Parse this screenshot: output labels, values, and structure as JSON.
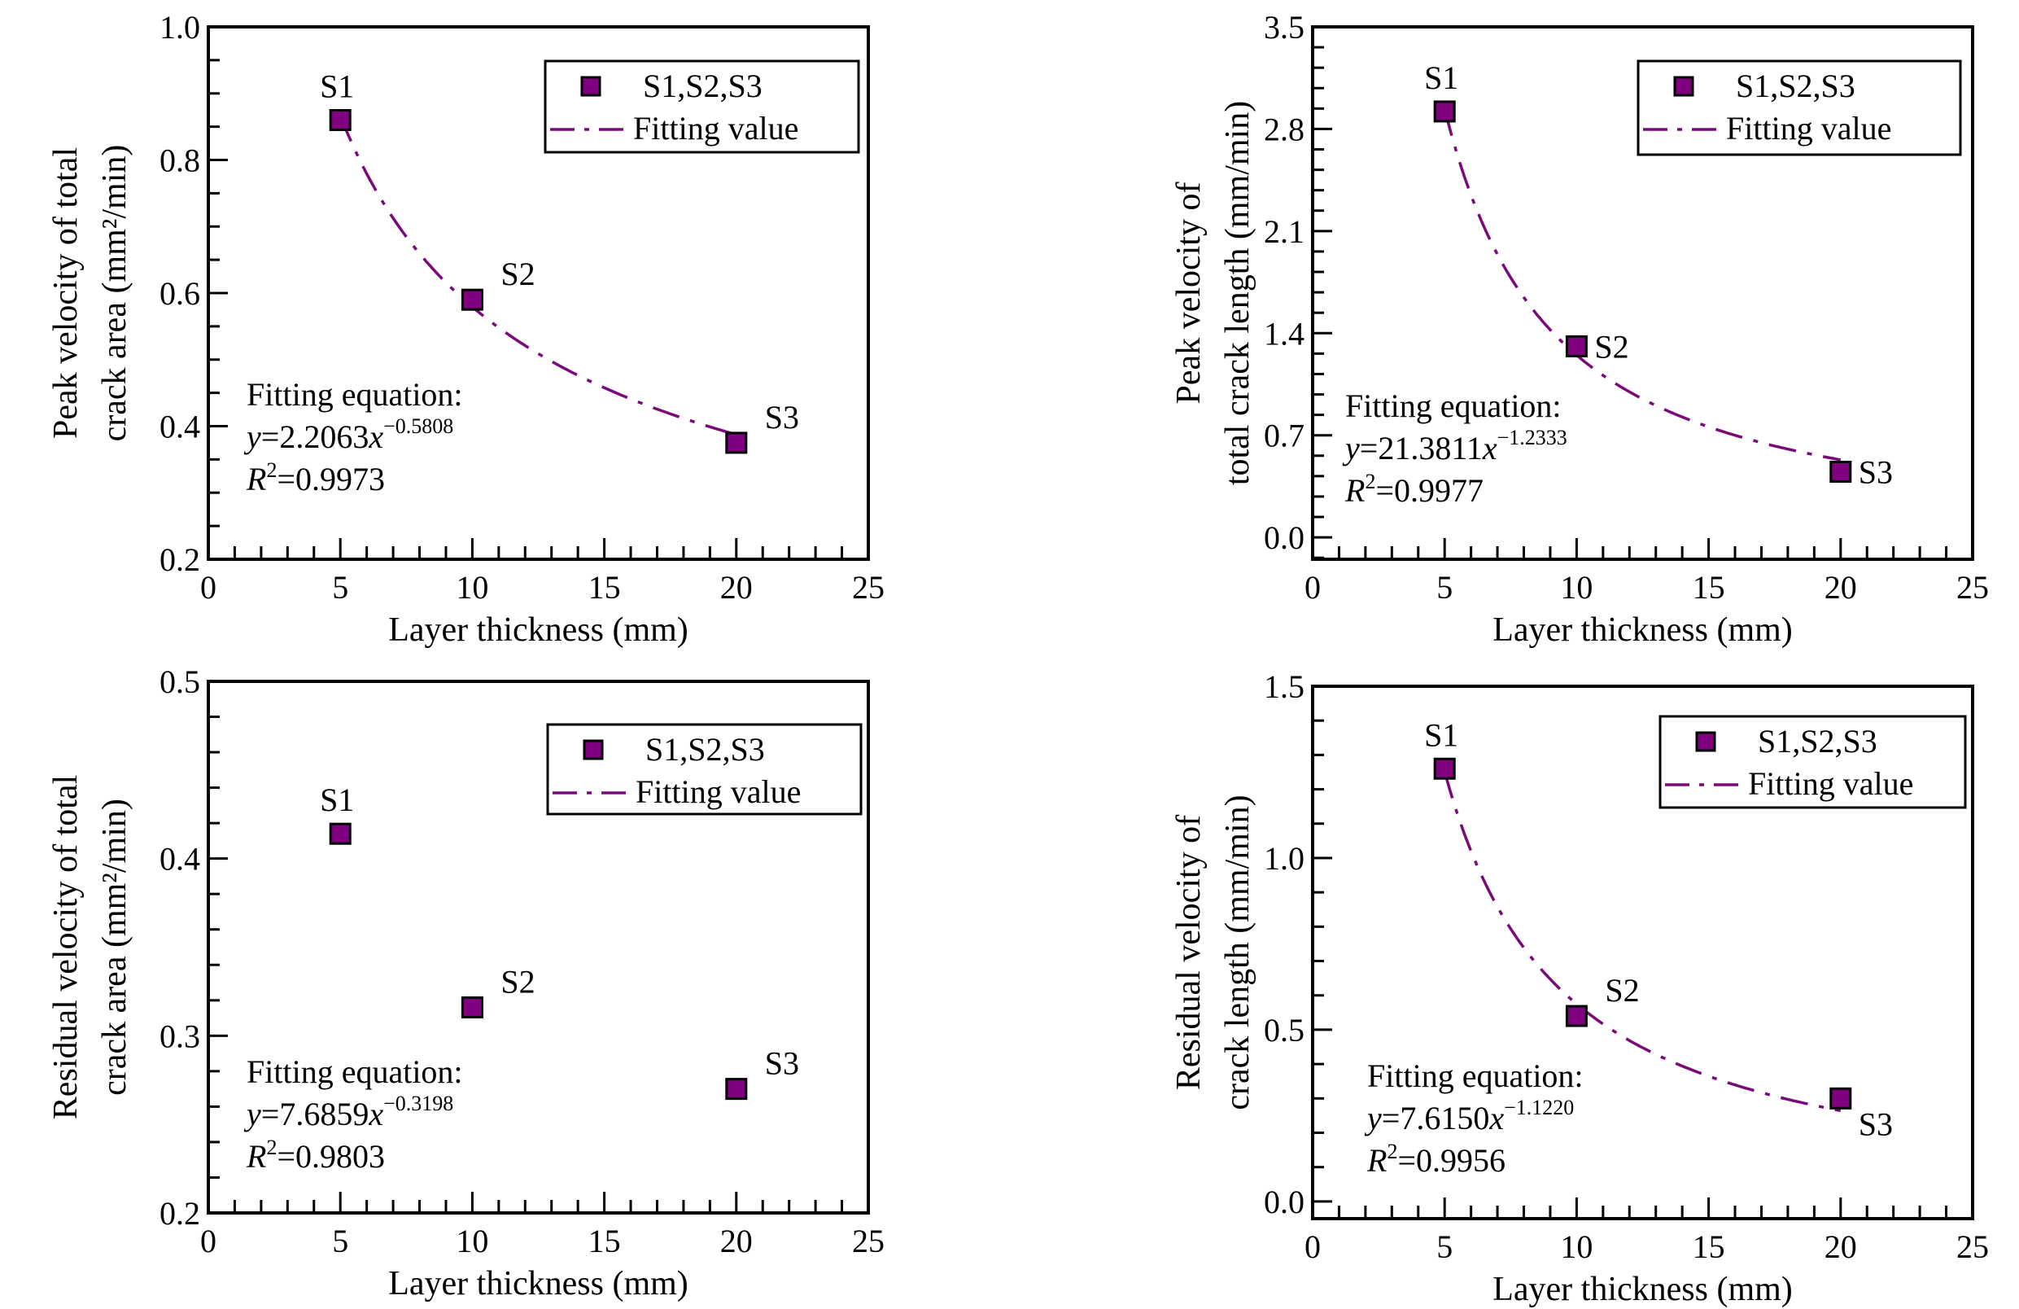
{
  "figure": {
    "marker_color": "#800080",
    "fit_color": "#7a0a7a"
  },
  "chart_data": [
    {
      "type": "scatter",
      "id": "peak-area",
      "title": "",
      "xlabel": "Layer thickness (mm)",
      "ylabel_lines": [
        "Peak velocity of total",
        "crack area (mm²/min)"
      ],
      "xlim": [
        0,
        25
      ],
      "ylim": [
        0.2,
        1.0
      ],
      "xticks": [
        0,
        5,
        10,
        15,
        20,
        25
      ],
      "xtick_labels": [
        "0",
        "5",
        "10",
        "15",
        "20",
        "25"
      ],
      "x_minor_step": 1,
      "yticks": [
        0.2,
        0.4,
        0.6,
        0.8,
        1.0
      ],
      "ytick_labels": [
        "0.2",
        "0.4",
        "0.6",
        "0.8",
        "1.0"
      ],
      "y_minor_step": 0.05,
      "grid": false,
      "legend": {
        "placement": "top-right",
        "entries": [
          "S1,S2,S3",
          "Fitting value"
        ]
      },
      "points": [
        {
          "label": "S1",
          "x": 5,
          "y": 0.86,
          "label_pos": "above"
        },
        {
          "label": "S2",
          "x": 10,
          "y": 0.59,
          "label_pos": "upper-right"
        },
        {
          "label": "S3",
          "x": 20,
          "y": 0.375,
          "label_pos": "upper-right"
        }
      ],
      "fit": {
        "a": 2.2063,
        "b": -0.5808,
        "x_range": [
          5,
          20
        ]
      },
      "equation": {
        "heading": "Fitting equation:",
        "lhs": "y",
        "eq": "=2.2063",
        "var": "x",
        "exponent": "−0.5808",
        "r2_label": "R",
        "r2_sup": "2",
        "r2_value": "=0.9973"
      }
    },
    {
      "type": "scatter",
      "id": "peak-length",
      "title": "",
      "xlabel": "Layer thickness (mm)",
      "ylabel_lines": [
        "Peak velocity of",
        "total crack length (mm/min)"
      ],
      "xlim": [
        0,
        25
      ],
      "ylim": [
        -0.15,
        3.5
      ],
      "xticks": [
        0,
        5,
        10,
        15,
        20,
        25
      ],
      "xtick_labels": [
        "0",
        "5",
        "10",
        "15",
        "20",
        "25"
      ],
      "x_minor_step": 1,
      "yticks": [
        0.0,
        0.7,
        1.4,
        2.1,
        2.8,
        3.5
      ],
      "ytick_labels": [
        "0.0",
        "0.7",
        "1.4",
        "2.1",
        "2.8",
        "3.5"
      ],
      "y_minor_step": 0.14,
      "grid": false,
      "legend": {
        "placement": "top-right",
        "entries": [
          "S1,S2,S3",
          "Fitting value"
        ]
      },
      "points": [
        {
          "label": "S1",
          "x": 5,
          "y": 2.92,
          "label_pos": "above"
        },
        {
          "label": "S2",
          "x": 10,
          "y": 1.31,
          "label_pos": "right"
        },
        {
          "label": "S3",
          "x": 20,
          "y": 0.45,
          "label_pos": "right"
        }
      ],
      "fit": {
        "a": 21.3811,
        "b": -1.2333,
        "x_range": [
          5,
          20
        ]
      },
      "equation": {
        "heading": "Fitting equation:",
        "lhs": "y",
        "eq": "=21.3811",
        "var": "x",
        "exponent": "−1.2333",
        "r2_label": "R",
        "r2_sup": "2",
        "r2_value": "=0.9977"
      }
    },
    {
      "type": "scatter",
      "id": "residual-area",
      "title": "",
      "xlabel": "Layer thickness (mm)",
      "ylabel_lines": [
        "Residual  velocity of total",
        "crack area (mm²/min)"
      ],
      "xlim": [
        0,
        25
      ],
      "ylim": [
        0.2,
        0.5
      ],
      "xticks": [
        0,
        5,
        10,
        15,
        20,
        25
      ],
      "xtick_labels": [
        "0",
        "5",
        "10",
        "15",
        "20",
        "25"
      ],
      "x_minor_step": 1,
      "yticks": [
        0.2,
        0.3,
        0.4,
        0.5
      ],
      "ytick_labels": [
        "0.2",
        "0.3",
        "0.4",
        "0.5"
      ],
      "y_minor_step": 0.02,
      "grid": false,
      "legend": {
        "placement": "top-right",
        "entries": [
          "S1,S2,S3",
          "Fitting value"
        ]
      },
      "points": [
        {
          "label": "S1",
          "x": 5,
          "y": 0.414,
          "label_pos": "above"
        },
        {
          "label": "S2",
          "x": 10,
          "y": 0.316,
          "label_pos": "upper-right"
        },
        {
          "label": "S3",
          "x": 20,
          "y": 0.27,
          "label_pos": "upper-right"
        }
      ],
      "fit": {
        "a": 7.6859,
        "b": -0.3198,
        "x_range": [
          5,
          20
        ],
        "note": "plotted curve as printed"
      },
      "equation": {
        "heading": "Fitting equation:",
        "lhs": "y",
        "eq": "=7.6859",
        "var": "x",
        "exponent": "−0.3198",
        "r2_label": "R",
        "r2_sup": "2",
        "r2_value": "=0.9803"
      }
    },
    {
      "type": "scatter",
      "id": "residual-length",
      "title": "",
      "xlabel": "Layer thickness (mm)",
      "ylabel_lines": [
        "Residual  velocity of",
        "crack length (mm/min)"
      ],
      "xlim": [
        0,
        25
      ],
      "ylim": [
        -0.05,
        1.5
      ],
      "xticks": [
        0,
        5,
        10,
        15,
        20,
        25
      ],
      "xtick_labels": [
        "0",
        "5",
        "10",
        "15",
        "20",
        "25"
      ],
      "x_minor_step": 1,
      "yticks": [
        0.0,
        0.5,
        1.0,
        1.5
      ],
      "ytick_labels": [
        "0.0",
        "0.5",
        "1.0",
        "1.5"
      ],
      "y_minor_step": 0.1,
      "grid": false,
      "legend": {
        "placement": "top-right",
        "entries": [
          "S1,S2,S3",
          "Fitting value"
        ]
      },
      "points": [
        {
          "label": "S1",
          "x": 5,
          "y": 1.26,
          "label_pos": "above"
        },
        {
          "label": "S2",
          "x": 10,
          "y": 0.54,
          "label_pos": "upper-right"
        },
        {
          "label": "S3",
          "x": 20,
          "y": 0.3,
          "label_pos": "below-right"
        }
      ],
      "fit": {
        "a": 7.615,
        "b": -1.122,
        "x_range": [
          5,
          20
        ]
      },
      "equation": {
        "heading": "Fitting equation:",
        "lhs": "y",
        "eq": "=7.6150",
        "var": "x",
        "exponent": "−1.1220",
        "r2_label": "R",
        "r2_sup": "2",
        "r2_value": "=0.9956"
      }
    }
  ]
}
